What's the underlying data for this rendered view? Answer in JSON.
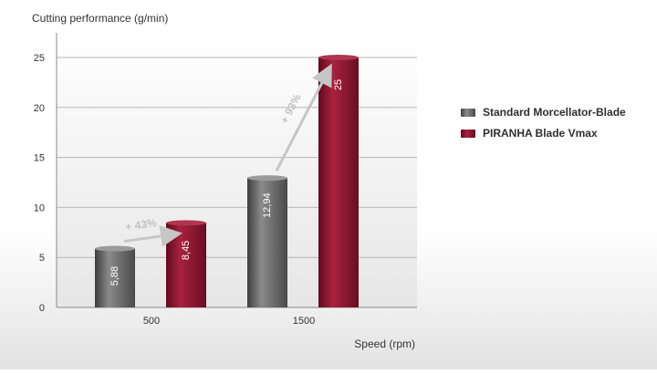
{
  "chart_data": {
    "type": "bar",
    "ylabel": "Cutting performance (g/min)",
    "xlabel": "Speed (rpm)",
    "categories": [
      "500",
      "1500"
    ],
    "ylim": [
      0,
      25
    ],
    "yticks": [
      "0",
      "5",
      "10",
      "15",
      "20",
      "25"
    ],
    "grid": true,
    "legend_position": "right",
    "series": [
      {
        "name": "Standard Morcellator-Blade",
        "values": [
          5.88,
          12.94
        ],
        "labels": [
          "5,88",
          "12,94"
        ],
        "color": "#6a6a6a"
      },
      {
        "name": "PIRANHA Blade Vmax",
        "values": [
          8.45,
          25
        ],
        "labels": [
          "8,45",
          "25"
        ],
        "color": "#8c1830"
      }
    ],
    "annotations": [
      {
        "text": "+ 43%",
        "category": "500"
      },
      {
        "text": "+ 93%",
        "category": "1500"
      }
    ]
  }
}
